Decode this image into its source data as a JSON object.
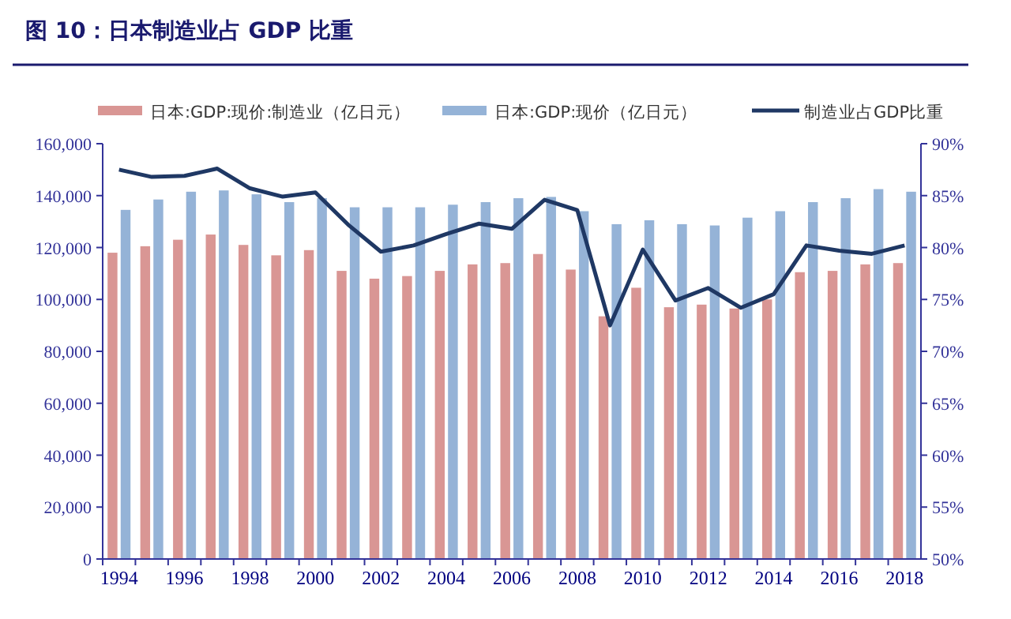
{
  "chart_data": {
    "type": "bar",
    "title": "图 10：日本制造业占 GDP 比重",
    "categories": [
      "1994",
      null,
      "1996",
      null,
      "1998",
      null,
      "2000",
      null,
      "2002",
      null,
      "2004",
      null,
      "2006",
      null,
      "2008",
      null,
      "2010",
      null,
      "2012",
      null,
      "2014",
      null,
      "2016",
      null,
      "2018"
    ],
    "series": [
      {
        "name": "日本:GDP:现价:制造业（亿日元）",
        "color": "#d99694",
        "values": [
          118000,
          120500,
          123000,
          125000,
          121000,
          117000,
          119000,
          111000,
          108000,
          109000,
          111000,
          113500,
          114000,
          117500,
          111500,
          93500,
          104500,
          97000,
          98000,
          96500,
          100000,
          110500,
          111000,
          113500,
          114000
        ]
      },
      {
        "name": "日本:GDP:现价（亿日元）",
        "color": "#95b3d7",
        "values": [
          134500,
          138500,
          141500,
          142000,
          140500,
          137500,
          139000,
          135500,
          135500,
          135500,
          136500,
          137500,
          139000,
          139500,
          134000,
          129000,
          130500,
          129000,
          128500,
          131500,
          134000,
          137500,
          139000,
          142500,
          141500
        ]
      },
      {
        "name": "制造业占GDP比重",
        "type": "line",
        "axis": "y2",
        "color": "#1f3864",
        "values": [
          87.5,
          86.8,
          86.9,
          87.6,
          85.7,
          84.9,
          85.3,
          82.2,
          79.6,
          80.2,
          81.3,
          82.3,
          81.8,
          84.6,
          83.6,
          72.5,
          79.8,
          74.9,
          76.1,
          74.2,
          75.5,
          80.2,
          79.7,
          79.4,
          80.2
        ]
      }
    ],
    "ylim": [
      0,
      160000
    ],
    "yticks": [
      {
        "value": 0,
        "label": "0"
      },
      {
        "value": 20000,
        "label": "20,000"
      },
      {
        "value": 40000,
        "label": "40,000"
      },
      {
        "value": 60000,
        "label": "60,000"
      },
      {
        "value": 80000,
        "label": "80,000"
      },
      {
        "value": 100000,
        "label": "100,000"
      },
      {
        "value": 120000,
        "label": "120,000"
      },
      {
        "value": 140000,
        "label": "140,000"
      },
      {
        "value": 160000,
        "label": "160,000"
      }
    ],
    "y2lim": [
      50,
      90
    ],
    "y2ticks": [
      {
        "value": 50,
        "label": "50%"
      },
      {
        "value": 55,
        "label": "55%"
      },
      {
        "value": 60,
        "label": "60%"
      },
      {
        "value": 65,
        "label": "65%"
      },
      {
        "value": 70,
        "label": "70%"
      },
      {
        "value": 75,
        "label": "75%"
      },
      {
        "value": 80,
        "label": "80%"
      },
      {
        "value": 85,
        "label": "85%"
      },
      {
        "value": 90,
        "label": "90%"
      }
    ],
    "legend": "top",
    "grid": false,
    "marker": "none",
    "line_style": "solid"
  }
}
